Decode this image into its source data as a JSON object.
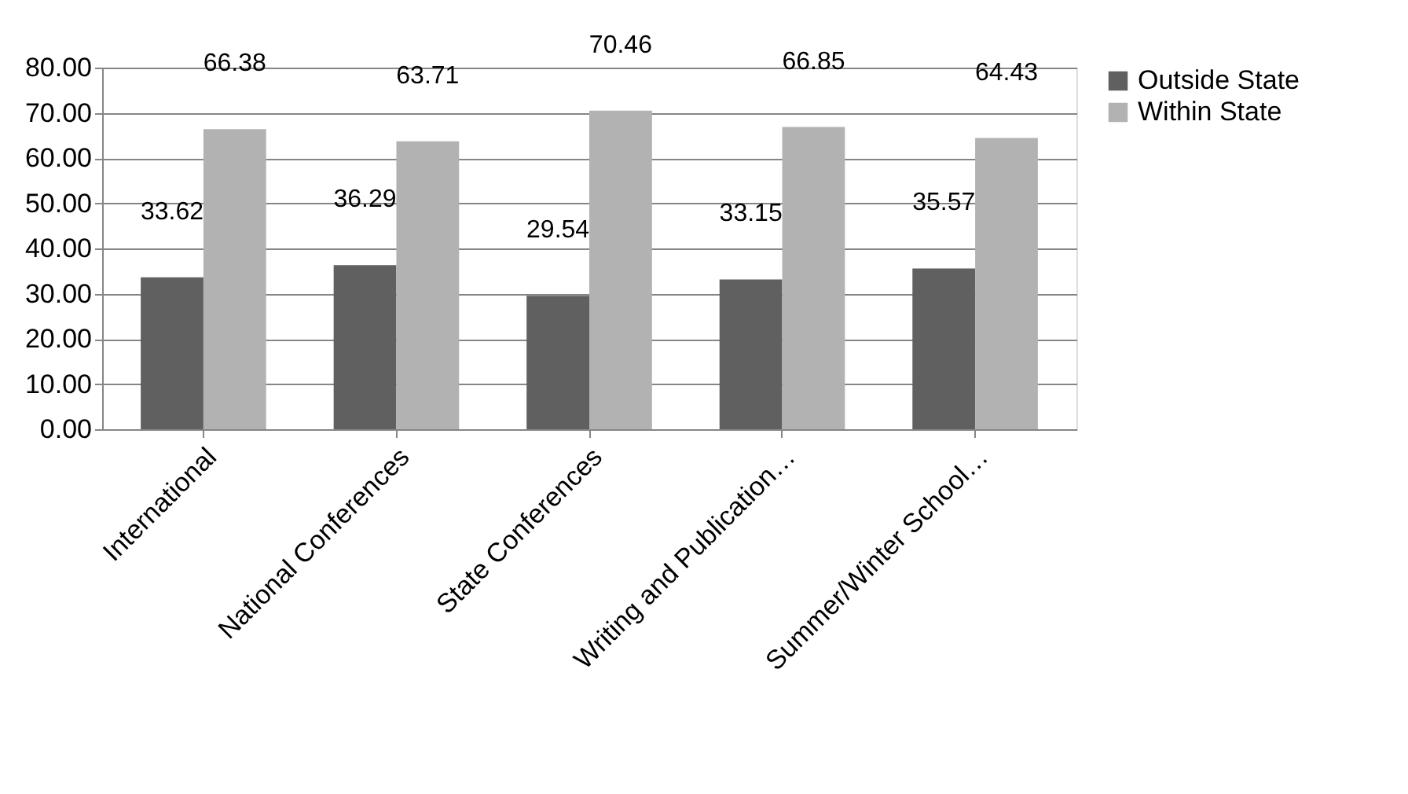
{
  "chart_data": {
    "type": "bar",
    "categories": [
      "International",
      "National Conferences",
      "State Conferences",
      "Writing and Publication…",
      "Summer/Winter School…"
    ],
    "series": [
      {
        "name": "Outside State",
        "color": "#606060",
        "values": [
          33.62,
          36.29,
          29.54,
          33.15,
          35.57
        ]
      },
      {
        "name": "Within State",
        "color": "#b2b2b2",
        "values": [
          66.38,
          63.71,
          70.46,
          66.85,
          64.43
        ]
      }
    ],
    "ylim": [
      0,
      80
    ],
    "yticks": [
      {
        "value": 0,
        "label": "0.00"
      },
      {
        "value": 10,
        "label": "10.00"
      },
      {
        "value": 20,
        "label": "20.00"
      },
      {
        "value": 30,
        "label": "30.00"
      },
      {
        "value": 40,
        "label": "40.00"
      },
      {
        "value": 50,
        "label": "50.00"
      },
      {
        "value": 60,
        "label": "60.00"
      },
      {
        "value": 70,
        "label": "70.00"
      },
      {
        "value": 80,
        "label": "80.00"
      }
    ],
    "grid": "y",
    "legend": "right",
    "data_labels": true
  }
}
